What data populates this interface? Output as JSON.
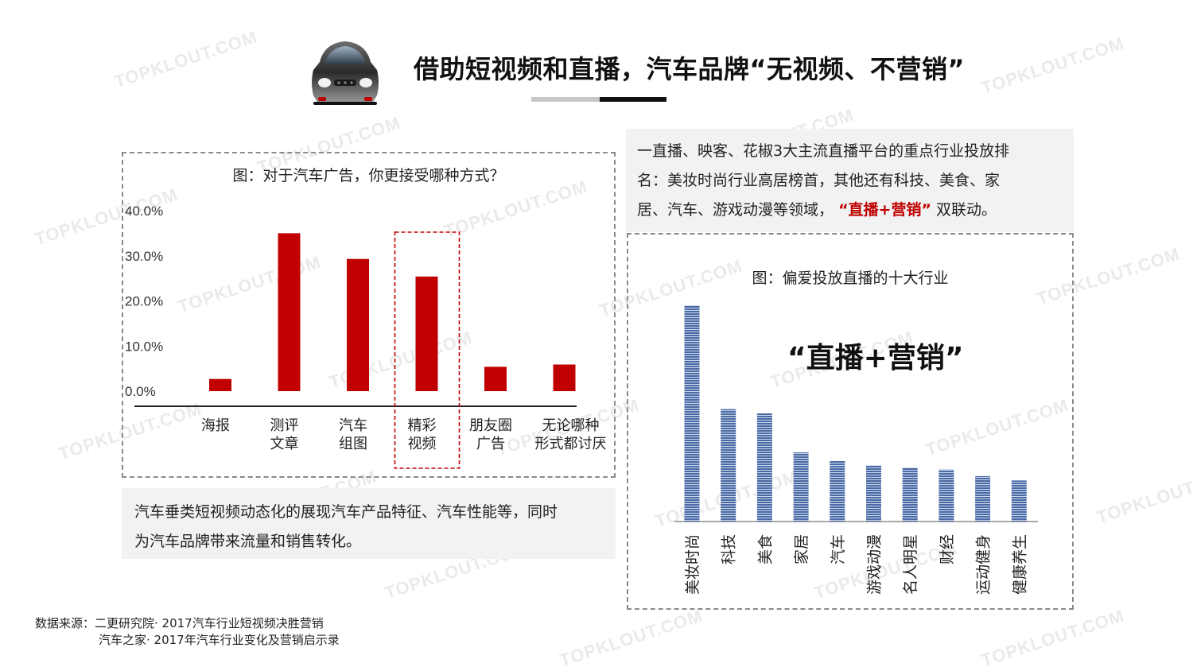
{
  "header": {
    "title": "借助短视频和直播，汽车品牌“无视频、不营销”",
    "icon": "car-icon"
  },
  "watermark_text": "TOPKLOUT.COM",
  "left_chart": {
    "title": "图：对于汽车广告，你更接受哪种方式？"
  },
  "right_chart": {
    "title": "图：偏爱投放直播的十大行业",
    "callout": "“直播+营销”"
  },
  "notes": {
    "left_line1": "汽车垂类短视频动态化的展现汽车产品特征、汽车性能等，同时",
    "left_line2": "为汽车品牌带来流量和销售转化。",
    "right_line1": "一直播、映客、花椒3大主流直播平台的重点行业投放排",
    "right_line2": "名：美妆时尚行业高居榜首，其他还有科技、美食、家",
    "right_line3_pre": "居、汽车、游戏动漫等领域，",
    "right_line3_hl": "“直播+营销”",
    "right_line3_post": "双联动。"
  },
  "source": {
    "line1": "数据来源：二更研究院· 2017汽车行业短视频决胜营销",
    "line2": "汽车之家·  2017年汽车行业变化及营销启示录"
  },
  "colors": {
    "bar_red": "#c00000",
    "bar_blue": "#4a6aa5",
    "highlight": "#c00000"
  },
  "chart_data": [
    {
      "type": "bar",
      "title": "图：对于汽车广告，你更接受哪种方式？",
      "categories": [
        "海报",
        "测评\n文章",
        "汽车\n组图",
        "精彩\n视频",
        "朋友圈\n广告",
        "无论哪种\n形式都讨厌"
      ],
      "values": [
        2.7,
        35.0,
        29.3,
        25.4,
        5.4,
        5.9
      ],
      "unit": "%",
      "ylim": [
        0,
        40
      ],
      "yticks": [
        "0.0%",
        "10.0%",
        "20.0%",
        "30.0%",
        "40.0%"
      ],
      "highlighted_category": "精彩\n视频",
      "grid": false
    },
    {
      "type": "bar",
      "title": "图：偏爱投放直播的十大行业",
      "categories": [
        "美妆时尚",
        "科技",
        "美食",
        "家居",
        "汽车",
        "游戏动漫",
        "名人明星",
        "财经",
        "运动健身",
        "健康养生"
      ],
      "values": [
        100,
        52,
        50,
        32,
        28,
        26,
        25,
        24,
        21,
        19
      ],
      "y_axis_shown": false,
      "grid": false
    }
  ]
}
